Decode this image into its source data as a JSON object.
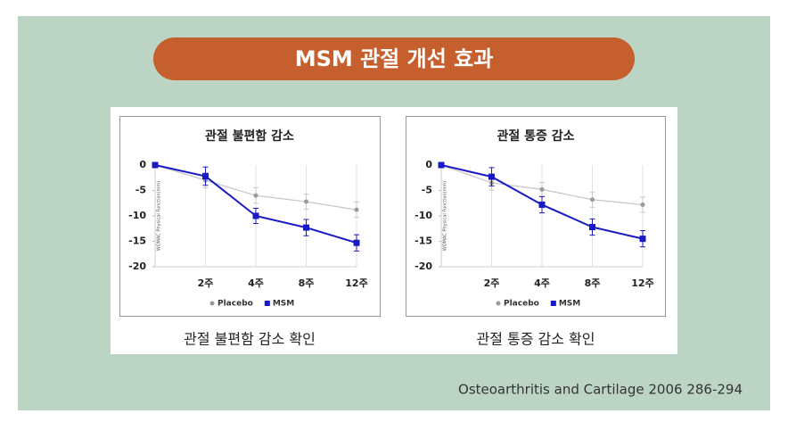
{
  "title": "MSM 관절 개선 효과",
  "chart_data": [
    {
      "type": "line",
      "title": "관절 불편함 감소",
      "ylabel": "WOMAC Physical Function(mm)",
      "categories": [
        null,
        "2주",
        "4주",
        "8주",
        "12주"
      ],
      "series": [
        {
          "name": "Placebo",
          "color": "#9a9a9a",
          "values": [
            0,
            -3.0,
            -6.0,
            -7.2,
            -8.8
          ],
          "errors": [
            null,
            1.5,
            1.5,
            1.5,
            1.5
          ]
        },
        {
          "name": "MSM",
          "color": "#1a1ac4",
          "values": [
            0,
            -2.2,
            -10.0,
            -12.3,
            -15.3
          ],
          "errors": [
            null,
            1.8,
            1.5,
            1.6,
            1.6
          ]
        }
      ],
      "ylim": [
        -20,
        0
      ],
      "yticks": [
        0,
        -5,
        -10,
        -15,
        -20
      ],
      "grid": true,
      "legend": "bottom"
    },
    {
      "type": "line",
      "title": "관절 통증 감소",
      "ylabel": "WOMAC Physical Function(mm)",
      "categories": [
        null,
        "2주",
        "4주",
        "8주",
        "12주"
      ],
      "series": [
        {
          "name": "Placebo",
          "color": "#9a9a9a",
          "values": [
            0,
            -3.5,
            -4.8,
            -6.8,
            -7.8
          ],
          "errors": [
            null,
            1.4,
            1.4,
            1.5,
            1.5
          ]
        },
        {
          "name": "MSM",
          "color": "#1a1ac4",
          "values": [
            0,
            -2.3,
            -7.8,
            -12.2,
            -14.5
          ],
          "errors": [
            null,
            1.8,
            1.6,
            1.6,
            1.6
          ]
        }
      ],
      "ylim": [
        -20,
        0
      ],
      "yticks": [
        0,
        -5,
        -10,
        -15,
        -20
      ],
      "grid": true,
      "legend": "bottom"
    }
  ],
  "captions": [
    "관절 불편함 감소 확인",
    "관절 통증 감소 확인"
  ],
  "citation": "Osteoarthritis and Cartilage 2006 286-294"
}
